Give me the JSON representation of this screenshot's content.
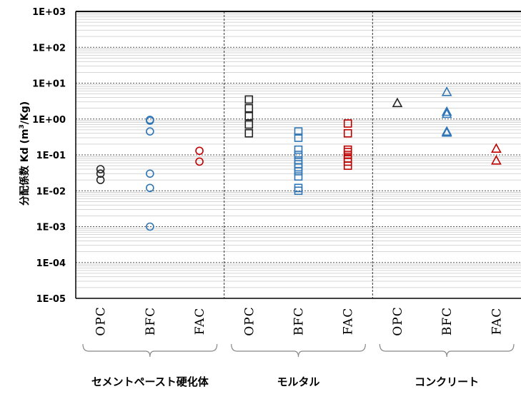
{
  "chart_data": {
    "type": "scatter",
    "title": "",
    "ylabel_main": "分配係数 Kd (m",
    "ylabel_sup": "3",
    "ylabel_tail": "/Kg)",
    "yscale": "log",
    "ylim": [
      1e-05,
      1000
    ],
    "y_ticks": [
      "1E+03",
      "1E+02",
      "1E+01",
      "1E+00",
      "1E-01",
      "1E-02",
      "1E-03",
      "1E-04",
      "1E-05"
    ],
    "grid": true,
    "groups": [
      {
        "name": "セメントペースト硬化体",
        "marker": "circle",
        "categories": [
          "OPC",
          "BFC",
          "FAC"
        ]
      },
      {
        "name": "モルタル",
        "marker": "square",
        "categories": [
          "OPC",
          "BFC",
          "FAC"
        ]
      },
      {
        "name": "コンクリート",
        "marker": "triangle",
        "categories": [
          "OPC",
          "BFC",
          "FAC"
        ]
      }
    ],
    "category_colors": {
      "OPC": "#222222",
      "BFC": "#2e75b6",
      "FAC": "#c00000"
    },
    "points": [
      {
        "group": 0,
        "category": "OPC",
        "values": [
          0.04,
          0.03,
          0.02
        ]
      },
      {
        "group": 0,
        "category": "BFC",
        "values": [
          0.95,
          0.9,
          0.45,
          0.03,
          0.012,
          0.001
        ]
      },
      {
        "group": 0,
        "category": "FAC",
        "values": [
          0.13,
          0.065
        ]
      },
      {
        "group": 1,
        "category": "OPC",
        "values": [
          3.5,
          2.0,
          1.2,
          0.7,
          0.4
        ]
      },
      {
        "group": 1,
        "category": "BFC",
        "values": [
          0.45,
          0.3,
          0.14,
          0.1,
          0.07,
          0.055,
          0.045,
          0.035,
          0.025,
          0.012,
          0.01
        ]
      },
      {
        "group": 1,
        "category": "FAC",
        "values": [
          0.75,
          0.4,
          0.14,
          0.12,
          0.1,
          0.08,
          0.065,
          0.05
        ]
      },
      {
        "group": 2,
        "category": "OPC",
        "values": [
          2.8
        ]
      },
      {
        "group": 2,
        "category": "BFC",
        "values": [
          5.7,
          1.6,
          1.4,
          0.45,
          0.42
        ]
      },
      {
        "group": 2,
        "category": "FAC",
        "values": [
          0.15,
          0.07
        ]
      }
    ]
  }
}
